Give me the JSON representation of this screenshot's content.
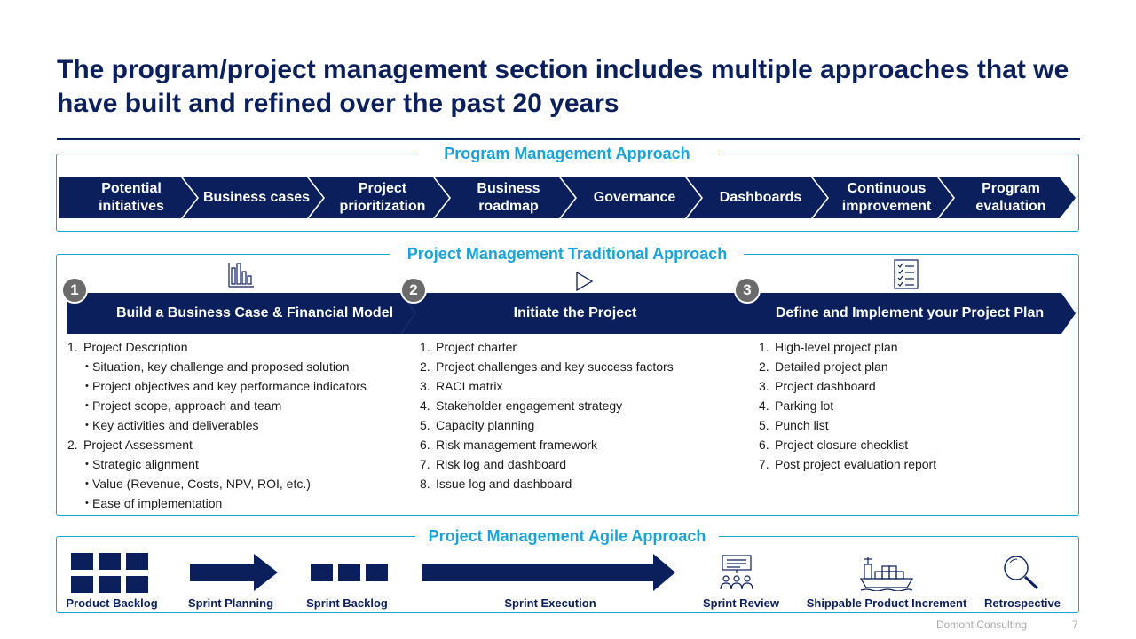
{
  "title": "The program/project management section includes multiple approaches that we have built and refined over the past 20 years",
  "program": {
    "label": "Program Management Approach",
    "steps": [
      "Potential initiatives",
      "Business cases",
      "Project prioritization",
      "Business roadmap",
      "Governance",
      "Dashboards",
      "Continuous improvement",
      "Program evaluation"
    ]
  },
  "traditional": {
    "label": "Project Management Traditional Approach",
    "phases": [
      {
        "number": "1",
        "icon": "bar-chart-icon",
        "title": "Build a Business Case & Financial Model",
        "items": [
          {
            "n": "1.",
            "text": "Project Description",
            "sub": false
          },
          {
            "n": "•",
            "text": "Situation, key challenge and proposed solution",
            "sub": true
          },
          {
            "n": "•",
            "text": "Project objectives and key performance indicators",
            "sub": true
          },
          {
            "n": "•",
            "text": "Project scope, approach and team",
            "sub": true
          },
          {
            "n": "•",
            "text": "Key activities and deliverables",
            "sub": true
          },
          {
            "n": "2.",
            "text": "Project Assessment",
            "sub": false
          },
          {
            "n": "•",
            "text": "Strategic alignment",
            "sub": true
          },
          {
            "n": "•",
            "text": "Value (Revenue, Costs, NPV, ROI, etc.)",
            "sub": true
          },
          {
            "n": "•",
            "text": "Ease of implementation",
            "sub": true
          }
        ]
      },
      {
        "number": "2",
        "icon": "play-icon",
        "title": "Initiate the Project",
        "items": [
          {
            "n": "1.",
            "text": "Project charter",
            "sub": false
          },
          {
            "n": "2.",
            "text": "Project challenges and key success factors",
            "sub": false
          },
          {
            "n": "3.",
            "text": "RACI matrix",
            "sub": false
          },
          {
            "n": "4.",
            "text": "Stakeholder engagement strategy",
            "sub": false
          },
          {
            "n": "5.",
            "text": "Capacity planning",
            "sub": false
          },
          {
            "n": "6.",
            "text": "Risk management framework",
            "sub": false
          },
          {
            "n": "7.",
            "text": "Risk log and dashboard",
            "sub": false
          },
          {
            "n": "8.",
            "text": "Issue log and dashboard",
            "sub": false
          }
        ]
      },
      {
        "number": "3",
        "icon": "checklist-icon",
        "title": "Define and Implement your Project Plan",
        "items": [
          {
            "n": "1.",
            "text": "High-level project plan",
            "sub": false
          },
          {
            "n": "2.",
            "text": "Detailed project plan",
            "sub": false
          },
          {
            "n": "3.",
            "text": "Project dashboard",
            "sub": false
          },
          {
            "n": "4.",
            "text": "Parking lot",
            "sub": false
          },
          {
            "n": "5.",
            "text": "Punch list",
            "sub": false
          },
          {
            "n": "6.",
            "text": "Project closure checklist",
            "sub": false
          },
          {
            "n": "7.",
            "text": "Post project evaluation report",
            "sub": false
          }
        ]
      }
    ]
  },
  "agile": {
    "label": "Project Management Agile Approach",
    "items": [
      "Product Backlog",
      "Sprint Planning",
      "Sprint Backlog",
      "Sprint Execution",
      "Sprint Review",
      "Shippable Product Increment",
      "Retrospective"
    ]
  },
  "footer": {
    "company": "Domont Consulting",
    "page": "7"
  },
  "colors": {
    "navy": "#0a1f5c",
    "accent": "#1aa3d9",
    "badge": "#6b6b6b"
  }
}
